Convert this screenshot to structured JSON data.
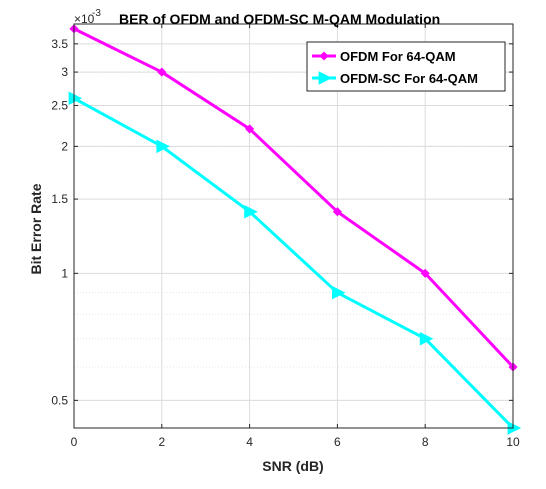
{
  "chart_data": {
    "type": "line",
    "title": "BER of OFDM and OFDM-SC M-QAM Modulation",
    "xlabel": "SNR (dB)",
    "ylabel": "Bit Error Rate",
    "y_scale": "log",
    "y_exponent_label": "×10",
    "y_exponent_power": "-3",
    "x": [
      0,
      2,
      4,
      6,
      8,
      10
    ],
    "xlim": [
      0,
      10
    ],
    "ylim": [
      0.00043,
      0.0039
    ],
    "x_ticks": [
      0,
      2,
      4,
      6,
      8,
      10
    ],
    "x_tick_labels": [
      "0",
      "2",
      "4",
      "6",
      "8",
      "10"
    ],
    "y_ticks": [
      0.0005,
      0.001,
      0.0015,
      0.002,
      0.0025,
      0.003,
      0.0035
    ],
    "y_tick_labels": [
      "0.5",
      "1",
      "1.5",
      "2",
      "2.5",
      "3",
      "3.5"
    ],
    "grid": true,
    "legend_position": "top-right",
    "series": [
      {
        "name": "OFDM For 64-QAM",
        "color": "#ff00ff",
        "marker": "diamond",
        "values": [
          0.0038,
          0.003,
          0.0022,
          0.0014,
          0.001,
          0.0006
        ]
      },
      {
        "name": "OFDM-SC For 64-QAM",
        "color": "#00ffff",
        "marker": "triangle-right",
        "values": [
          0.0026,
          0.002,
          0.0014,
          0.0009,
          0.0007,
          0.00043
        ]
      }
    ]
  }
}
